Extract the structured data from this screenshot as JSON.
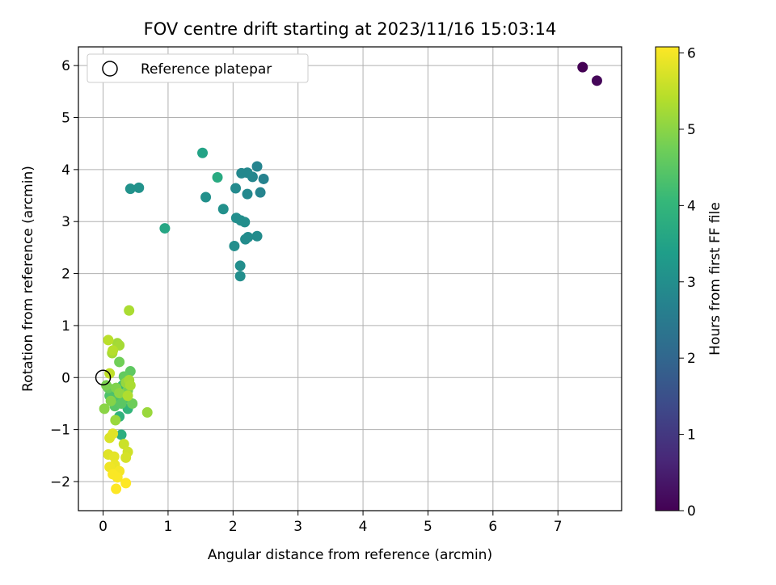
{
  "chart_data": {
    "type": "scatter",
    "title": "FOV centre drift starting at 2023/11/16 15:03:14",
    "xlabel": "Angular distance from reference (arcmin)",
    "ylabel": "Rotation from reference (arcmin)",
    "xlim": [
      -0.38,
      7.98
    ],
    "ylim": [
      -2.56,
      6.36
    ],
    "xticks": [
      0,
      1,
      2,
      3,
      4,
      5,
      6,
      7
    ],
    "yticks": [
      -2,
      -1,
      0,
      1,
      2,
      3,
      4,
      5,
      6
    ],
    "grid": true,
    "legend": {
      "placement": "top-left",
      "entries": [
        {
          "label": "Reference platepar",
          "marker": "open-circle"
        }
      ]
    },
    "reference_point": {
      "x": 0,
      "y": 0
    },
    "colorbar": {
      "label": "Hours from first FF file",
      "range": [
        0,
        6.08
      ],
      "ticks": [
        0,
        1,
        2,
        3,
        4,
        5,
        6
      ],
      "colormap": "viridis",
      "colors": [
        "#440154",
        "#482878",
        "#3e4989",
        "#31688e",
        "#26828e",
        "#1f9e89",
        "#35b779",
        "#6ece58",
        "#b5de2b",
        "#fde725"
      ]
    },
    "points": [
      {
        "x": 7.38,
        "y": 5.97,
        "c": 0.0
      },
      {
        "x": 7.6,
        "y": 5.71,
        "c": 0.1
      },
      {
        "x": 2.47,
        "y": 3.82,
        "c": 2.7
      },
      {
        "x": 2.37,
        "y": 4.06,
        "c": 2.75
      },
      {
        "x": 2.3,
        "y": 3.86,
        "c": 2.8
      },
      {
        "x": 2.42,
        "y": 3.56,
        "c": 2.75
      },
      {
        "x": 2.22,
        "y": 3.53,
        "c": 2.85
      },
      {
        "x": 2.22,
        "y": 3.94,
        "c": 2.85
      },
      {
        "x": 2.13,
        "y": 3.93,
        "c": 2.85
      },
      {
        "x": 2.04,
        "y": 3.64,
        "c": 2.9
      },
      {
        "x": 2.37,
        "y": 2.72,
        "c": 2.95
      },
      {
        "x": 2.23,
        "y": 2.7,
        "c": 2.95
      },
      {
        "x": 2.19,
        "y": 2.66,
        "c": 2.95
      },
      {
        "x": 2.02,
        "y": 2.53,
        "c": 3.0
      },
      {
        "x": 2.11,
        "y": 2.15,
        "c": 3.0
      },
      {
        "x": 2.11,
        "y": 1.95,
        "c": 3.0
      },
      {
        "x": 2.05,
        "y": 3.07,
        "c": 3.0
      },
      {
        "x": 2.12,
        "y": 3.02,
        "c": 3.0
      },
      {
        "x": 2.18,
        "y": 2.99,
        "c": 3.0
      },
      {
        "x": 1.85,
        "y": 3.24,
        "c": 3.05
      },
      {
        "x": 1.58,
        "y": 3.47,
        "c": 3.05
      },
      {
        "x": 0.42,
        "y": 3.63,
        "c": 3.1
      },
      {
        "x": 0.55,
        "y": 3.65,
        "c": 3.1
      },
      {
        "x": 1.53,
        "y": 4.32,
        "c": 3.5
      },
      {
        "x": 0.95,
        "y": 2.87,
        "c": 3.6
      },
      {
        "x": 1.76,
        "y": 3.85,
        "c": 3.7
      },
      {
        "x": 0.28,
        "y": -1.1,
        "c": 3.8
      },
      {
        "x": 0.25,
        "y": -0.75,
        "c": 3.9
      },
      {
        "x": 0.38,
        "y": -0.6,
        "c": 4.0
      },
      {
        "x": 0.3,
        "y": -0.15,
        "c": 4.1
      },
      {
        "x": 0.15,
        "y": -0.3,
        "c": 4.2
      },
      {
        "x": 0.22,
        "y": -0.45,
        "c": 4.3
      },
      {
        "x": 0.1,
        "y": -0.35,
        "c": 4.35
      },
      {
        "x": 0.35,
        "y": -0.4,
        "c": 4.4
      },
      {
        "x": 0.18,
        "y": -0.55,
        "c": 4.45
      },
      {
        "x": 0.28,
        "y": -0.5,
        "c": 4.5
      },
      {
        "x": 0.42,
        "y": 0.12,
        "c": 4.55
      },
      {
        "x": 0.32,
        "y": 0.02,
        "c": 4.6
      },
      {
        "x": 0.08,
        "y": -0.2,
        "c": 4.65
      },
      {
        "x": 0.45,
        "y": -0.5,
        "c": 4.7
      },
      {
        "x": 0.25,
        "y": 0.3,
        "c": 4.75
      },
      {
        "x": 0.38,
        "y": -0.25,
        "c": 4.8
      },
      {
        "x": 0.05,
        "y": -0.15,
        "c": 4.85
      },
      {
        "x": 0.2,
        "y": -0.2,
        "c": 4.9
      },
      {
        "x": 0.12,
        "y": -0.45,
        "c": 4.95
      },
      {
        "x": 0.02,
        "y": -0.6,
        "c": 5.0
      },
      {
        "x": 0.25,
        "y": -0.3,
        "c": 5.05
      },
      {
        "x": 0.35,
        "y": -0.1,
        "c": 5.1
      },
      {
        "x": 0.19,
        "y": -0.82,
        "c": 5.15
      },
      {
        "x": 0.68,
        "y": -0.67,
        "c": 5.15
      },
      {
        "x": 0.22,
        "y": 0.66,
        "c": 5.2
      },
      {
        "x": 0.25,
        "y": 0.62,
        "c": 5.25
      },
      {
        "x": 0.14,
        "y": 0.47,
        "c": 5.25
      },
      {
        "x": 0.4,
        "y": -0.05,
        "c": 5.25
      },
      {
        "x": 0.42,
        "y": -0.15,
        "c": 5.3
      },
      {
        "x": 0.38,
        "y": -0.35,
        "c": 5.35
      },
      {
        "x": 0.15,
        "y": 0.52,
        "c": 5.4
      },
      {
        "x": 0.08,
        "y": 0.72,
        "c": 5.45
      },
      {
        "x": 0.1,
        "y": 0.08,
        "c": 5.5
      },
      {
        "x": 0.4,
        "y": 1.29,
        "c": 5.3
      },
      {
        "x": 0.32,
        "y": -1.28,
        "c": 5.6
      },
      {
        "x": 0.38,
        "y": -1.43,
        "c": 5.65
      },
      {
        "x": 0.35,
        "y": -1.54,
        "c": 5.7
      },
      {
        "x": 0.1,
        "y": -1.16,
        "c": 5.75
      },
      {
        "x": 0.08,
        "y": -1.48,
        "c": 5.8
      },
      {
        "x": 0.17,
        "y": -1.52,
        "c": 5.85
      },
      {
        "x": 0.15,
        "y": -1.08,
        "c": 5.8
      },
      {
        "x": 0.18,
        "y": -1.68,
        "c": 5.9
      },
      {
        "x": 0.1,
        "y": -1.72,
        "c": 5.95
      },
      {
        "x": 0.2,
        "y": -1.85,
        "c": 6.0
      },
      {
        "x": 0.25,
        "y": -1.8,
        "c": 6.0
      },
      {
        "x": 0.15,
        "y": -1.86,
        "c": 6.05
      },
      {
        "x": 0.22,
        "y": -1.92,
        "c": 6.05
      },
      {
        "x": 0.35,
        "y": -2.03,
        "c": 6.08
      },
      {
        "x": 0.2,
        "y": -2.14,
        "c": 6.08
      }
    ]
  }
}
